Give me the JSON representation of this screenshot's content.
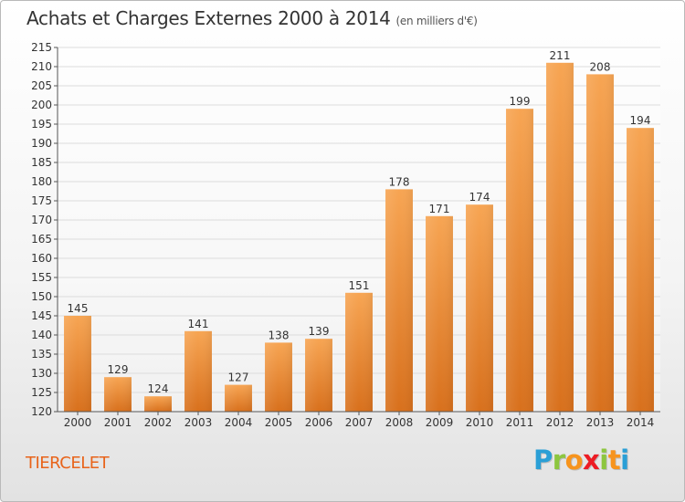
{
  "chart_data": {
    "type": "bar",
    "title": "Achats et Charges Externes 2000 à 2014",
    "subtitle": "(en milliers d'€)",
    "categories": [
      "2000",
      "2001",
      "2002",
      "2003",
      "2004",
      "2005",
      "2006",
      "2007",
      "2008",
      "2009",
      "2010",
      "2011",
      "2012",
      "2013",
      "2014"
    ],
    "values": [
      145,
      129,
      124,
      141,
      127,
      138,
      139,
      151,
      178,
      171,
      174,
      199,
      211,
      208,
      194
    ],
    "ylim": [
      120,
      215
    ],
    "yticks": [
      120,
      125,
      130,
      135,
      140,
      145,
      150,
      155,
      160,
      165,
      170,
      175,
      180,
      185,
      190,
      195,
      200,
      205,
      210,
      215
    ],
    "grid": true,
    "bar_color": "#e8822a"
  },
  "footer": {
    "town": "TIERCELET"
  },
  "logo": {
    "letters": [
      "P",
      "r",
      "o",
      "x",
      "i",
      "t",
      "i"
    ]
  }
}
